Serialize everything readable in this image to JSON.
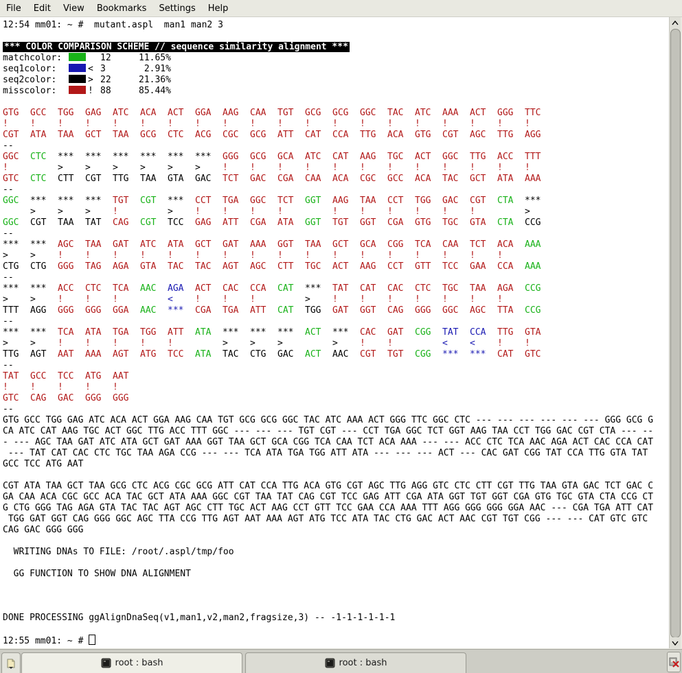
{
  "menu": {
    "items": [
      "File",
      "Edit",
      "View",
      "Bookmarks",
      "Settings",
      "Help"
    ]
  },
  "colors": {
    "match": "#18b218",
    "seq1": "#1818b2",
    "seq2": "#000000",
    "miss": "#b21818"
  },
  "terminal": {
    "prompt1": "12:54 mm01: ~ #  mutant.aspl  man1 man2 3",
    "scheme_header": "*** COLOR COMPARISON SCHEME // sequence similarity alignment ***",
    "legend": [
      {
        "label": "matchcolor:",
        "swatch": "#18b218",
        "symbol": " ",
        "count": "12",
        "percent": "11.65%"
      },
      {
        "label": "seq1color:",
        "swatch": "#1818b2",
        "symbol": "<",
        "count": "3",
        "percent": " 2.91%"
      },
      {
        "label": "seq2color:",
        "swatch": "#000000",
        "symbol": ">",
        "count": "22",
        "percent": "21.36%"
      },
      {
        "label": "misscolor:",
        "swatch": "#b21818",
        "symbol": "!",
        "count": "88",
        "percent": "85.44%"
      }
    ],
    "separator": "--",
    "blocks": [
      {
        "top": [
          "GTG",
          "GCC",
          "TGG",
          "GAG",
          "ATC",
          "ACA",
          "ACT",
          "GGA",
          "AAG",
          "CAA",
          "TGT",
          "GCG",
          "GCG",
          "GGC",
          "TAC",
          "ATC",
          "AAA",
          "ACT",
          "GGG",
          "TTC"
        ],
        "sym": [
          "!",
          "!",
          "!",
          "!",
          "!",
          "!",
          "!",
          "!",
          "!",
          "!",
          "!",
          "!",
          "!",
          "!",
          "!",
          "!",
          "!",
          "!",
          "!",
          "!"
        ],
        "bot": [
          "CGT",
          "ATA",
          "TAA",
          "GCT",
          "TAA",
          "GCG",
          "CTC",
          "ACG",
          "CGC",
          "GCG",
          "ATT",
          "CAT",
          "CCA",
          "TTG",
          "ACA",
          "GTG",
          "CGT",
          "AGC",
          "TTG",
          "AGG"
        ],
        "col": [
          "m",
          "m",
          "m",
          "m",
          "m",
          "m",
          "m",
          "m",
          "m",
          "m",
          "m",
          "m",
          "m",
          "m",
          "m",
          "m",
          "m",
          "m",
          "m",
          "m"
        ]
      },
      {
        "top": [
          "GGC",
          "CTC",
          "***",
          "***",
          "***",
          "***",
          "***",
          "***",
          "GGG",
          "GCG",
          "GCA",
          "ATC",
          "CAT",
          "AAG",
          "TGC",
          "ACT",
          "GGC",
          "TTG",
          "ACC",
          "TTT"
        ],
        "sym": [
          "!",
          "",
          ">",
          ">",
          ">",
          ">",
          ">",
          ">",
          "!",
          "!",
          "!",
          "!",
          "!",
          "!",
          "!",
          "!",
          "!",
          "!",
          "!",
          "!"
        ],
        "bot": [
          "GTC",
          "CTC",
          "CTT",
          "CGT",
          "TTG",
          "TAA",
          "GTA",
          "GAC",
          "TCT",
          "GAC",
          "CGA",
          "CAA",
          "ACA",
          "CGC",
          "GCC",
          "ACA",
          "TAC",
          "GCT",
          "ATA",
          "AAA"
        ],
        "col": [
          "m",
          "g",
          "s2",
          "s2",
          "s2",
          "s2",
          "s2",
          "s2",
          "m",
          "m",
          "m",
          "m",
          "m",
          "m",
          "m",
          "m",
          "m",
          "m",
          "m",
          "m"
        ]
      },
      {
        "top": [
          "GGC",
          "***",
          "***",
          "***",
          "TGT",
          "CGT",
          "***",
          "CCT",
          "TGA",
          "GGC",
          "TCT",
          "GGT",
          "AAG",
          "TAA",
          "CCT",
          "TGG",
          "GAC",
          "CGT",
          "CTA",
          "***"
        ],
        "sym": [
          "",
          ">",
          ">",
          ">",
          "!",
          "",
          ">",
          "!",
          "!",
          "!",
          "!",
          "",
          "!",
          "!",
          "!",
          "!",
          "!",
          "!",
          "",
          ">"
        ],
        "bot": [
          "GGC",
          "CGT",
          "TAA",
          "TAT",
          "CAG",
          "CGT",
          "TCC",
          "GAG",
          "ATT",
          "CGA",
          "ATA",
          "GGT",
          "TGT",
          "GGT",
          "CGA",
          "GTG",
          "TGC",
          "GTA",
          "CTA",
          "CCG"
        ],
        "col": [
          "g",
          "s2",
          "s2",
          "s2",
          "m",
          "g",
          "s2",
          "m",
          "m",
          "m",
          "m",
          "g",
          "m",
          "m",
          "m",
          "m",
          "m",
          "m",
          "g",
          "s2"
        ]
      },
      {
        "top": [
          "***",
          "***",
          "AGC",
          "TAA",
          "GAT",
          "ATC",
          "ATA",
          "GCT",
          "GAT",
          "AAA",
          "GGT",
          "TAA",
          "GCT",
          "GCA",
          "CGG",
          "TCA",
          "CAA",
          "TCT",
          "ACA",
          "AAA"
        ],
        "sym": [
          ">",
          ">",
          "!",
          "!",
          "!",
          "!",
          "!",
          "!",
          "!",
          "!",
          "!",
          "!",
          "!",
          "!",
          "!",
          "!",
          "!",
          "!",
          "!",
          ""
        ],
        "bot": [
          "CTG",
          "CTG",
          "GGG",
          "TAG",
          "AGA",
          "GTA",
          "TAC",
          "TAC",
          "AGT",
          "AGC",
          "CTT",
          "TGC",
          "ACT",
          "AAG",
          "CCT",
          "GTT",
          "TCC",
          "GAA",
          "CCA",
          "AAA"
        ],
        "col": [
          "s2",
          "s2",
          "m",
          "m",
          "m",
          "m",
          "m",
          "m",
          "m",
          "m",
          "m",
          "m",
          "m",
          "m",
          "m",
          "m",
          "m",
          "m",
          "m",
          "g"
        ]
      },
      {
        "top": [
          "***",
          "***",
          "ACC",
          "CTC",
          "TCA",
          "AAC",
          "AGA",
          "ACT",
          "CAC",
          "CCA",
          "CAT",
          "***",
          "TAT",
          "CAT",
          "CAC",
          "CTC",
          "TGC",
          "TAA",
          "AGA",
          "CCG"
        ],
        "sym": [
          ">",
          ">",
          "!",
          "!",
          "!",
          "",
          "<",
          "!",
          "!",
          "!",
          "",
          ">",
          "!",
          "!",
          "!",
          "!",
          "!",
          "!",
          "!",
          ""
        ],
        "bot": [
          "TTT",
          "AGG",
          "GGG",
          "GGG",
          "GGA",
          "AAC",
          "***",
          "CGA",
          "TGA",
          "ATT",
          "CAT",
          "TGG",
          "GAT",
          "GGT",
          "CAG",
          "GGG",
          "GGC",
          "AGC",
          "TTA",
          "CCG"
        ],
        "col": [
          "s2",
          "s2",
          "m",
          "m",
          "m",
          "g",
          "s1",
          "m",
          "m",
          "m",
          "g",
          "s2",
          "m",
          "m",
          "m",
          "m",
          "m",
          "m",
          "m",
          "g"
        ]
      },
      {
        "top": [
          "***",
          "***",
          "TCA",
          "ATA",
          "TGA",
          "TGG",
          "ATT",
          "ATA",
          "***",
          "***",
          "***",
          "ACT",
          "***",
          "CAC",
          "GAT",
          "CGG",
          "TAT",
          "CCA",
          "TTG",
          "GTA"
        ],
        "sym": [
          ">",
          ">",
          "!",
          "!",
          "!",
          "!",
          "!",
          "",
          ">",
          ">",
          ">",
          "",
          ">",
          "!",
          "!",
          "",
          "<",
          "<",
          "!",
          "!"
        ],
        "bot": [
          "TTG",
          "AGT",
          "AAT",
          "AAA",
          "AGT",
          "ATG",
          "TCC",
          "ATA",
          "TAC",
          "CTG",
          "GAC",
          "ACT",
          "AAC",
          "CGT",
          "TGT",
          "CGG",
          "***",
          "***",
          "CAT",
          "GTC"
        ],
        "col": [
          "s2",
          "s2",
          "m",
          "m",
          "m",
          "m",
          "m",
          "g",
          "s2",
          "s2",
          "s2",
          "g",
          "s2",
          "m",
          "m",
          "g",
          "s1",
          "s1",
          "m",
          "m"
        ]
      },
      {
        "top": [
          "TAT",
          "GCC",
          "TCC",
          "ATG",
          "AAT"
        ],
        "sym": [
          "!",
          "!",
          "!",
          "!",
          "!"
        ],
        "bot": [
          "GTC",
          "CAG",
          "GAC",
          "GGG",
          "GGG"
        ],
        "col": [
          "m",
          "m",
          "m",
          "m",
          "m"
        ]
      }
    ],
    "seq1_lines": [
      "GTG GCC TGG GAG ATC ACA ACT GGA AAG CAA TGT GCG GCG GGC TAC ATC AAA ACT GGG TTC GGC CTC --- --- --- --- --- --- GGG GCG G",
      "CA ATC CAT AAG TGC ACT GGC TTG ACC TTT GGC --- --- --- TGT CGT --- CCT TGA GGC TCT GGT AAG TAA CCT TGG GAC CGT CTA --- --",
      "- --- AGC TAA GAT ATC ATA GCT GAT AAA GGT TAA GCT GCA CGG TCA CAA TCT ACA AAA --- --- ACC CTC TCA AAC AGA ACT CAC CCA CAT",
      " --- TAT CAT CAC CTC TGC TAA AGA CCG --- --- TCA ATA TGA TGG ATT ATA --- --- --- ACT --- CAC GAT CGG TAT CCA TTG GTA TAT",
      "GCC TCC ATG AAT"
    ],
    "seq2_lines": [
      "CGT ATA TAA GCT TAA GCG CTC ACG CGC GCG ATT CAT CCA TTG ACA GTG CGT AGC TTG AGG GTC CTC CTT CGT TTG TAA GTA GAC TCT GAC C",
      "GA CAA ACA CGC GCC ACA TAC GCT ATA AAA GGC CGT TAA TAT CAG CGT TCC GAG ATT CGA ATA GGT TGT GGT CGA GTG TGC GTA CTA CCG CT",
      "G CTG GGG TAG AGA GTA TAC TAC AGT AGC CTT TGC ACT AAG CCT GTT TCC GAA CCA AAA TTT AGG GGG GGG GGA AAC --- CGA TGA ATT CAT",
      " TGG GAT GGT CAG GGG GGC AGC TTA CCG TTG AGT AAT AAA AGT ATG TCC ATA TAC CTG GAC ACT AAC CGT TGT CGG --- --- CAT GTC GTC",
      "CAG GAC GGG GGG"
    ],
    "writing_line": "  WRITING DNAs TO FILE: /root/.aspl/tmp/foo",
    "gg_line": "  GG FUNCTION TO SHOW DNA ALIGNMENT",
    "done_line": "DONE PROCESSING ggAlignDnaSeq(v1,man1,v2,man2,fragsize,3) -- -1-1-1-1-1-1",
    "prompt2": "12:55 mm01: ~ # "
  },
  "tabbar": {
    "tabs": [
      {
        "label": "root : bash",
        "active": true
      },
      {
        "label": "root : bash",
        "active": false
      }
    ]
  }
}
